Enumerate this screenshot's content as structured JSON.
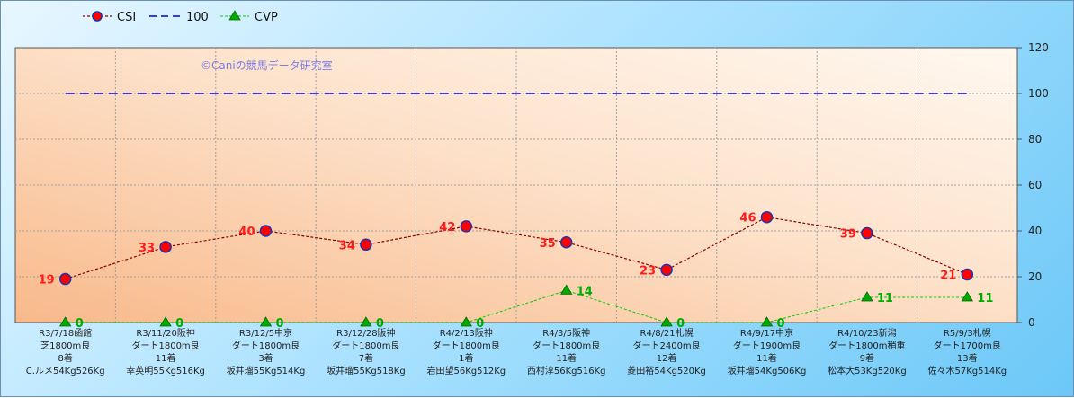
{
  "chart_data": {
    "type": "line",
    "categories": [
      [
        "R3/7/18函館",
        "芝1800m良",
        "8着",
        "C.ルメ54Kg526Kg"
      ],
      [
        "R3/11/20阪神",
        "ダート1800m良",
        "11着",
        "幸英明55Kg516Kg"
      ],
      [
        "R3/12/5中京",
        "ダート1800m良",
        "3着",
        "坂井瑠55Kg514Kg"
      ],
      [
        "R3/12/28阪神",
        "ダート1800m良",
        "7着",
        "坂井瑠55Kg518Kg"
      ],
      [
        "R4/2/13阪神",
        "ダート1800m良",
        "1着",
        "岩田望56Kg512Kg"
      ],
      [
        "R4/3/5阪神",
        "ダート1800m良",
        "11着",
        "西村淳56Kg516Kg"
      ],
      [
        "R4/8/21札幌",
        "ダート2400m良",
        "12着",
        "菱田裕54Kg520Kg"
      ],
      [
        "R4/9/17中京",
        "ダート1900m良",
        "11着",
        "坂井瑠54Kg506Kg"
      ],
      [
        "R4/10/23新潟",
        "ダート1800m稍重",
        "9着",
        "松本大53Kg520Kg"
      ],
      [
        "R5/9/3札幌",
        "ダート1700m良",
        "13着",
        "佐々木57Kg514Kg"
      ]
    ],
    "series": [
      {
        "name": "CSI",
        "values": [
          19,
          33,
          40,
          34,
          42,
          35,
          23,
          46,
          39,
          21
        ],
        "color": "#8b0000",
        "marker_color": "#ff0000"
      },
      {
        "name": "100",
        "values": [
          100,
          100,
          100,
          100,
          100,
          100,
          100,
          100,
          100,
          100
        ],
        "color": "#0000cc"
      },
      {
        "name": "CVP",
        "values": [
          0,
          0,
          0,
          0,
          0,
          14,
          0,
          0,
          11,
          11
        ],
        "color": "#00cc00",
        "marker_color": "#00aa00"
      }
    ],
    "ylim": [
      0,
      120
    ],
    "yticks": [
      0,
      20,
      40,
      60,
      80,
      100,
      120
    ],
    "grid": true,
    "legend": "top-left",
    "watermark": "©Caniの競馬データ研究室"
  }
}
